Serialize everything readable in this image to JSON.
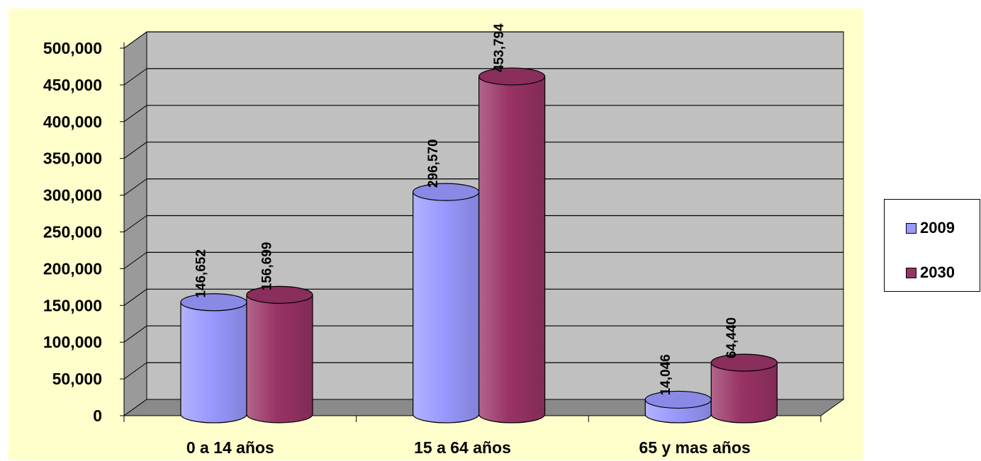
{
  "chart_data": {
    "type": "bar",
    "style": "3d-cylinder",
    "categories": [
      "0 a 14 años",
      "15 a 64 años",
      "65 y mas años"
    ],
    "series": [
      {
        "name": "2009",
        "values": [
          146652,
          296570,
          14046
        ],
        "labels": [
          "146,652",
          "296,570",
          "14,046"
        ],
        "color": "#9999ff"
      },
      {
        "name": "2030",
        "values": [
          156699,
          453794,
          64440
        ],
        "labels": [
          "156,699",
          "453,794",
          "64,440"
        ],
        "color": "#993366"
      }
    ],
    "ylim": [
      0,
      500000
    ],
    "yticks": [
      0,
      50000,
      100000,
      150000,
      200000,
      250000,
      300000,
      350000,
      400000,
      450000,
      500000
    ],
    "ytick_labels": [
      "0",
      "50,000",
      "100,000",
      "150,000",
      "200,000",
      "250,000",
      "300,000",
      "350,000",
      "400,000",
      "450,000",
      "500,000"
    ],
    "grid": true,
    "legend_position": "right",
    "background_color": "#ffffcc",
    "wall_color": "#c0c0c0"
  }
}
